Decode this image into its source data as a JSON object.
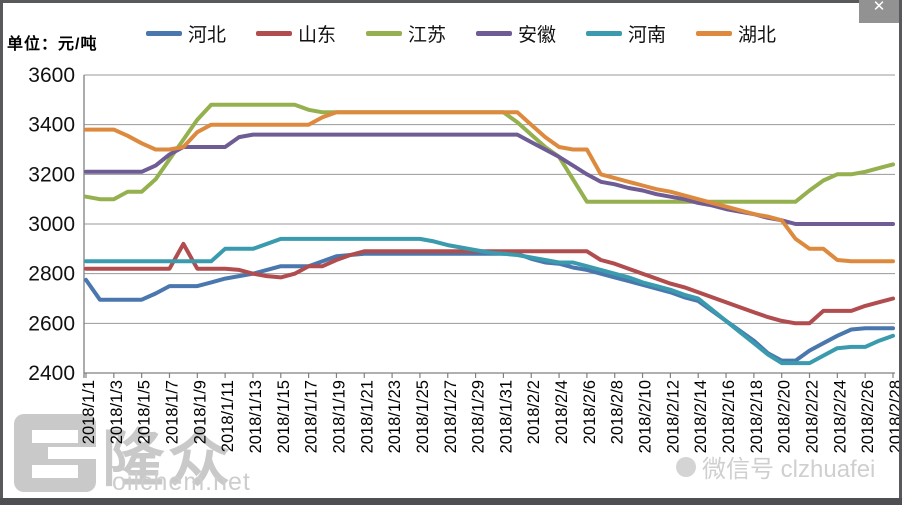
{
  "window": {
    "close_label": "✕"
  },
  "unit_label": "单位：元/吨",
  "watermark": {
    "brand": "隆众",
    "site": "oilchem.net",
    "wechat": "微信号 clzhuafei"
  },
  "chart_data": {
    "type": "line",
    "title": "",
    "ylabel": "单位：元/吨",
    "ylim": [
      2400,
      3600
    ],
    "yticks": [
      3600,
      3400,
      3200,
      3000,
      2800,
      2600,
      2400
    ],
    "grid": "horizontal",
    "legend_position": "top",
    "x_count": 59,
    "x_tick_every": 2,
    "x_labels": [
      "2018/1/1",
      "2018/1/3",
      "2018/1/5",
      "2018/1/7",
      "2018/1/9",
      "2018/1/11",
      "2018/1/13",
      "2018/1/15",
      "2018/1/17",
      "2018/1/19",
      "2018/1/21",
      "2018/1/23",
      "2018/1/25",
      "2018/1/27",
      "2018/1/29",
      "2018/1/31",
      "2018/2/2",
      "2018/2/4",
      "2018/2/6",
      "2018/2/8",
      "2018/2/10",
      "2018/2/12",
      "2018/2/14",
      "2018/2/16",
      "2018/2/18",
      "2018/2/20",
      "2018/2/22",
      "2018/2/24",
      "2018/2/26",
      "2018/2/28"
    ],
    "series": [
      {
        "key": "hebei",
        "name": "河北",
        "color": "#4A77AD",
        "values": [
          2775,
          2695,
          2695,
          2695,
          2695,
          2720,
          2750,
          2750,
          2750,
          2765,
          2780,
          2790,
          2800,
          2815,
          2830,
          2830,
          2830,
          2850,
          2870,
          2875,
          2880,
          2880,
          2880,
          2880,
          2880,
          2880,
          2880,
          2880,
          2880,
          2880,
          2880,
          2880,
          2860,
          2845,
          2840,
          2825,
          2815,
          2800,
          2785,
          2770,
          2755,
          2740,
          2725,
          2705,
          2690,
          2650,
          2610,
          2570,
          2530,
          2480,
          2450,
          2450,
          2490,
          2520,
          2550,
          2575,
          2580,
          2580,
          2580
        ]
      },
      {
        "key": "shandong",
        "name": "山东",
        "color": "#B14D4E",
        "values": [
          2820,
          2820,
          2820,
          2820,
          2820,
          2820,
          2820,
          2920,
          2820,
          2820,
          2820,
          2815,
          2800,
          2790,
          2785,
          2800,
          2830,
          2830,
          2855,
          2875,
          2890,
          2890,
          2890,
          2890,
          2890,
          2890,
          2890,
          2890,
          2890,
          2890,
          2890,
          2890,
          2890,
          2890,
          2890,
          2890,
          2890,
          2855,
          2840,
          2820,
          2800,
          2780,
          2760,
          2745,
          2725,
          2705,
          2685,
          2665,
          2645,
          2625,
          2610,
          2600,
          2600,
          2650,
          2650,
          2650,
          2670,
          2685,
          2700
        ]
      },
      {
        "key": "jiangsu",
        "name": "江苏",
        "color": "#95B04F",
        "values": [
          3110,
          3100,
          3100,
          3130,
          3130,
          3180,
          3260,
          3340,
          3420,
          3480,
          3480,
          3480,
          3480,
          3480,
          3480,
          3480,
          3460,
          3450,
          3450,
          3450,
          3450,
          3450,
          3450,
          3450,
          3450,
          3450,
          3450,
          3450,
          3450,
          3450,
          3450,
          3410,
          3360,
          3310,
          3270,
          3180,
          3090,
          3090,
          3090,
          3090,
          3090,
          3090,
          3090,
          3090,
          3090,
          3090,
          3090,
          3090,
          3090,
          3090,
          3090,
          3090,
          3135,
          3175,
          3200,
          3200,
          3210,
          3225,
          3240
        ]
      },
      {
        "key": "anhui",
        "name": "安徽",
        "color": "#6F5C94",
        "values": [
          3210,
          3210,
          3210,
          3210,
          3210,
          3235,
          3280,
          3310,
          3310,
          3310,
          3310,
          3350,
          3360,
          3360,
          3360,
          3360,
          3360,
          3360,
          3360,
          3360,
          3360,
          3360,
          3360,
          3360,
          3360,
          3360,
          3360,
          3360,
          3360,
          3360,
          3360,
          3360,
          3330,
          3300,
          3270,
          3235,
          3200,
          3170,
          3160,
          3145,
          3135,
          3120,
          3110,
          3100,
          3085,
          3075,
          3060,
          3050,
          3040,
          3025,
          3015,
          3000,
          3000,
          3000,
          3000,
          3000,
          3000,
          3000,
          3000
        ]
      },
      {
        "key": "henan",
        "name": "河南",
        "color": "#3A9AAE",
        "values": [
          2850,
          2850,
          2850,
          2850,
          2850,
          2850,
          2850,
          2850,
          2850,
          2850,
          2900,
          2900,
          2900,
          2920,
          2940,
          2940,
          2940,
          2940,
          2940,
          2940,
          2940,
          2940,
          2940,
          2940,
          2940,
          2930,
          2915,
          2905,
          2895,
          2885,
          2880,
          2875,
          2865,
          2855,
          2845,
          2845,
          2830,
          2815,
          2800,
          2785,
          2765,
          2750,
          2735,
          2715,
          2700,
          2655,
          2610,
          2565,
          2520,
          2475,
          2440,
          2440,
          2440,
          2470,
          2500,
          2505,
          2505,
          2530,
          2550
        ]
      },
      {
        "key": "hubei",
        "name": "湖北",
        "color": "#DD8A3F",
        "values": [
          3380,
          3380,
          3380,
          3355,
          3325,
          3300,
          3300,
          3310,
          3370,
          3400,
          3400,
          3400,
          3400,
          3400,
          3400,
          3400,
          3400,
          3430,
          3450,
          3450,
          3450,
          3450,
          3450,
          3450,
          3450,
          3450,
          3450,
          3450,
          3450,
          3450,
          3450,
          3450,
          3400,
          3350,
          3310,
          3300,
          3300,
          3200,
          3185,
          3170,
          3155,
          3140,
          3130,
          3115,
          3100,
          3085,
          3070,
          3055,
          3040,
          3030,
          3015,
          2940,
          2900,
          2900,
          2855,
          2850,
          2850,
          2850,
          2850
        ]
      }
    ]
  }
}
